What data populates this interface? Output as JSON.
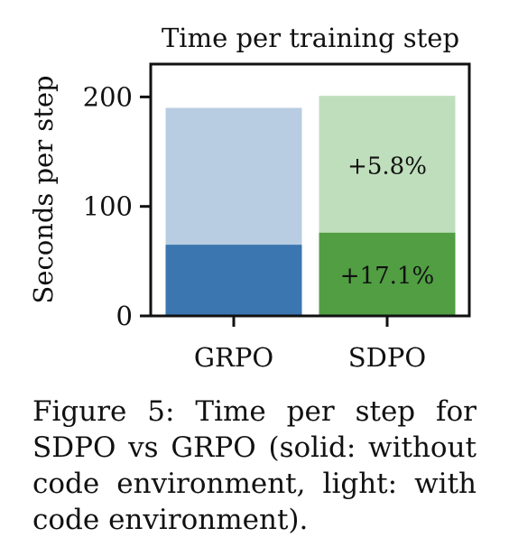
{
  "chart_data": {
    "type": "bar",
    "title": "Time per training step",
    "xlabel": "",
    "ylabel": "Seconds per step",
    "categories": [
      "GRPO",
      "SDPO"
    ],
    "ylim": [
      0,
      230
    ],
    "yticks": [
      0,
      100,
      200
    ],
    "grid": false,
    "stacked_overlay": true,
    "series": [
      {
        "name": "with code environment",
        "values": [
          190,
          201
        ],
        "colors": [
          "#b8cde2",
          "#bfdfbc"
        ]
      },
      {
        "name": "without code environment",
        "values": [
          65,
          76
        ],
        "colors": [
          "#3b76b0",
          "#519e43"
        ]
      }
    ],
    "annotations": [
      {
        "category": "SDPO",
        "series": "with code environment",
        "text": "+5.8%",
        "y": 138
      },
      {
        "category": "SDPO",
        "series": "without code environment",
        "text": "+17.1%",
        "y": 38
      }
    ]
  },
  "caption": {
    "label": "Figure 5:",
    "text": "Time per step for SDPO vs GRPO (solid: with­out code environment, light: with code environment)."
  }
}
